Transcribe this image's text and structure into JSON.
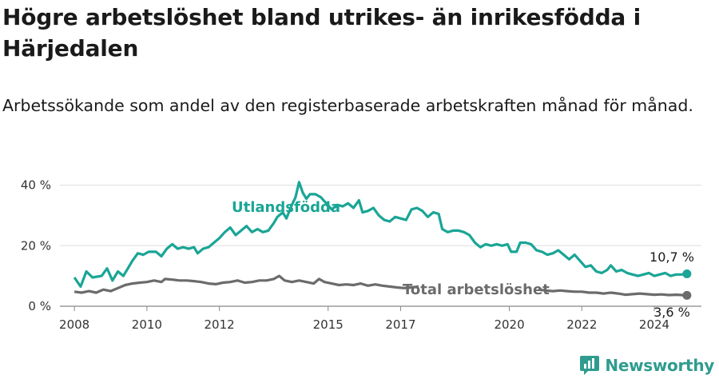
{
  "title": "Högre arbetslöshet bland utrikes- än inrikesfödda i Härjedalen",
  "subtitle": "Arbetssökande som andel av den registerbaserade arbetskraften månad för månad.",
  "brand": "Newsworthy",
  "colors": {
    "foreign": "#1aa596",
    "total": "#6b6b6b",
    "grid": "#dddddd",
    "brand": "#2f9c8f"
  },
  "chart_data": {
    "type": "line",
    "ylim": [
      0,
      42
    ],
    "xlim": [
      2007.6,
      2025.3
    ],
    "y_ticks": [
      0,
      20,
      40
    ],
    "y_tick_labels": [
      "0 %",
      "20 %",
      "40 %"
    ],
    "x_ticks": [
      2008,
      2010,
      2012,
      2015,
      2017,
      2020,
      2022,
      2024
    ],
    "x_tick_labels": [
      "2008",
      "2010",
      "2012",
      "2015",
      "2017",
      "2020",
      "2022",
      "2024"
    ],
    "grid": true,
    "series": [
      {
        "name": "Utlandsfödda",
        "end_label": "10,7 %",
        "points": [
          [
            2008.0,
            9.5
          ],
          [
            2008.17,
            6.5
          ],
          [
            2008.33,
            11.5
          ],
          [
            2008.5,
            9.5
          ],
          [
            2008.75,
            10
          ],
          [
            2008.9,
            12.5
          ],
          [
            2009.05,
            8.5
          ],
          [
            2009.2,
            11.5
          ],
          [
            2009.35,
            10
          ],
          [
            2009.5,
            13
          ],
          [
            2009.6,
            15
          ],
          [
            2009.75,
            17.5
          ],
          [
            2009.9,
            17
          ],
          [
            2010.05,
            18
          ],
          [
            2010.25,
            18
          ],
          [
            2010.4,
            16.5
          ],
          [
            2010.55,
            19
          ],
          [
            2010.7,
            20.5
          ],
          [
            2010.85,
            19
          ],
          [
            2011.0,
            19.5
          ],
          [
            2011.15,
            19
          ],
          [
            2011.3,
            19.5
          ],
          [
            2011.4,
            17.5
          ],
          [
            2011.55,
            19
          ],
          [
            2011.7,
            19.5
          ],
          [
            2011.85,
            21
          ],
          [
            2012.0,
            22.5
          ],
          [
            2012.15,
            24.5
          ],
          [
            2012.3,
            26
          ],
          [
            2012.45,
            23.5
          ],
          [
            2012.6,
            25
          ],
          [
            2012.75,
            26.5
          ],
          [
            2012.9,
            24.5
          ],
          [
            2013.05,
            25.5
          ],
          [
            2013.2,
            24.5
          ],
          [
            2013.35,
            25
          ],
          [
            2013.5,
            27.5
          ],
          [
            2013.6,
            29.5
          ],
          [
            2013.75,
            31
          ],
          [
            2013.85,
            29
          ],
          [
            2014.0,
            33.5
          ],
          [
            2014.1,
            36
          ],
          [
            2014.2,
            41
          ],
          [
            2014.3,
            37.5
          ],
          [
            2014.4,
            35.5
          ],
          [
            2014.5,
            37
          ],
          [
            2014.65,
            37
          ],
          [
            2014.8,
            36
          ],
          [
            2014.95,
            34
          ],
          [
            2015.1,
            32
          ],
          [
            2015.25,
            33.5
          ],
          [
            2015.4,
            33
          ],
          [
            2015.55,
            34
          ],
          [
            2015.7,
            32.5
          ],
          [
            2015.85,
            35
          ],
          [
            2015.95,
            31
          ],
          [
            2016.1,
            31.5
          ],
          [
            2016.25,
            32.5
          ],
          [
            2016.4,
            30
          ],
          [
            2016.55,
            28.5
          ],
          [
            2016.7,
            28
          ],
          [
            2016.85,
            29.5
          ],
          [
            2017.0,
            29
          ],
          [
            2017.15,
            28.5
          ],
          [
            2017.3,
            32
          ],
          [
            2017.45,
            32.5
          ],
          [
            2017.6,
            31.5
          ],
          [
            2017.75,
            29.5
          ],
          [
            2017.9,
            31
          ],
          [
            2018.05,
            30.5
          ],
          [
            2018.15,
            25.5
          ],
          [
            2018.3,
            24.5
          ],
          [
            2018.45,
            25
          ],
          [
            2018.6,
            25
          ],
          [
            2018.75,
            24.5
          ],
          [
            2018.9,
            23.5
          ],
          [
            2019.05,
            21
          ],
          [
            2019.2,
            19.5
          ],
          [
            2019.35,
            20.5
          ],
          [
            2019.5,
            20
          ],
          [
            2019.65,
            20.5
          ],
          [
            2019.8,
            20
          ],
          [
            2019.95,
            20.5
          ],
          [
            2020.05,
            18
          ],
          [
            2020.2,
            18
          ],
          [
            2020.3,
            21
          ],
          [
            2020.45,
            21
          ],
          [
            2020.6,
            20.5
          ],
          [
            2020.75,
            18.5
          ],
          [
            2020.9,
            18
          ],
          [
            2021.05,
            17
          ],
          [
            2021.2,
            17.5
          ],
          [
            2021.35,
            18.5
          ],
          [
            2021.5,
            17
          ],
          [
            2021.65,
            15.5
          ],
          [
            2021.8,
            17
          ],
          [
            2021.95,
            15
          ],
          [
            2022.1,
            13
          ],
          [
            2022.25,
            13.5
          ],
          [
            2022.4,
            11.5
          ],
          [
            2022.55,
            11
          ],
          [
            2022.7,
            12
          ],
          [
            2022.8,
            13.5
          ],
          [
            2022.95,
            11.5
          ],
          [
            2023.1,
            12
          ],
          [
            2023.25,
            11
          ],
          [
            2023.4,
            10.5
          ],
          [
            2023.55,
            10
          ],
          [
            2023.7,
            10.5
          ],
          [
            2023.85,
            11
          ],
          [
            2024.0,
            10
          ],
          [
            2024.15,
            10.5
          ],
          [
            2024.3,
            11
          ],
          [
            2024.45,
            10
          ],
          [
            2024.6,
            10.5
          ],
          [
            2024.75,
            10.5
          ],
          [
            2024.9,
            10.7
          ]
        ]
      },
      {
        "name": "Total arbetslöshet",
        "end_label": "3,6 %",
        "points": [
          [
            2008.0,
            4.8
          ],
          [
            2008.2,
            4.5
          ],
          [
            2008.4,
            5
          ],
          [
            2008.6,
            4.5
          ],
          [
            2008.8,
            5.5
          ],
          [
            2009.0,
            5
          ],
          [
            2009.2,
            6
          ],
          [
            2009.4,
            7
          ],
          [
            2009.6,
            7.5
          ],
          [
            2009.8,
            7.8
          ],
          [
            2010.0,
            8
          ],
          [
            2010.2,
            8.5
          ],
          [
            2010.4,
            8
          ],
          [
            2010.5,
            9
          ],
          [
            2010.7,
            8.8
          ],
          [
            2010.9,
            8.5
          ],
          [
            2011.1,
            8.5
          ],
          [
            2011.3,
            8.3
          ],
          [
            2011.5,
            8
          ],
          [
            2011.7,
            7.5
          ],
          [
            2011.9,
            7.3
          ],
          [
            2012.1,
            7.8
          ],
          [
            2012.3,
            8
          ],
          [
            2012.5,
            8.5
          ],
          [
            2012.7,
            7.8
          ],
          [
            2012.9,
            8
          ],
          [
            2013.1,
            8.5
          ],
          [
            2013.3,
            8.5
          ],
          [
            2013.5,
            9
          ],
          [
            2013.65,
            10
          ],
          [
            2013.8,
            8.5
          ],
          [
            2014.0,
            8
          ],
          [
            2014.2,
            8.5
          ],
          [
            2014.4,
            8
          ],
          [
            2014.6,
            7.5
          ],
          [
            2014.75,
            9
          ],
          [
            2014.9,
            8
          ],
          [
            2015.1,
            7.5
          ],
          [
            2015.3,
            7
          ],
          [
            2015.5,
            7.2
          ],
          [
            2015.7,
            7
          ],
          [
            2015.9,
            7.5
          ],
          [
            2016.1,
            6.8
          ],
          [
            2016.3,
            7.2
          ],
          [
            2016.5,
            6.8
          ],
          [
            2016.7,
            6.5
          ],
          [
            2016.9,
            6.2
          ],
          [
            2017.1,
            6
          ],
          [
            2017.3,
            6.2
          ],
          [
            2017.5,
            6.5
          ]
        ],
        "points2": [
          [
            2020.8,
            5.5
          ],
          [
            2021.0,
            5.2
          ],
          [
            2021.2,
            5
          ],
          [
            2021.4,
            5.2
          ],
          [
            2021.6,
            5
          ],
          [
            2021.8,
            4.8
          ],
          [
            2022.0,
            4.8
          ],
          [
            2022.2,
            4.5
          ],
          [
            2022.4,
            4.5
          ],
          [
            2022.6,
            4.2
          ],
          [
            2022.8,
            4.5
          ],
          [
            2023.0,
            4.2
          ],
          [
            2023.2,
            3.8
          ],
          [
            2023.4,
            4
          ],
          [
            2023.6,
            4.2
          ],
          [
            2023.8,
            4
          ],
          [
            2024.0,
            3.8
          ],
          [
            2024.2,
            3.9
          ],
          [
            2024.4,
            3.7
          ],
          [
            2024.6,
            3.8
          ],
          [
            2024.9,
            3.6
          ]
        ]
      }
    ]
  }
}
